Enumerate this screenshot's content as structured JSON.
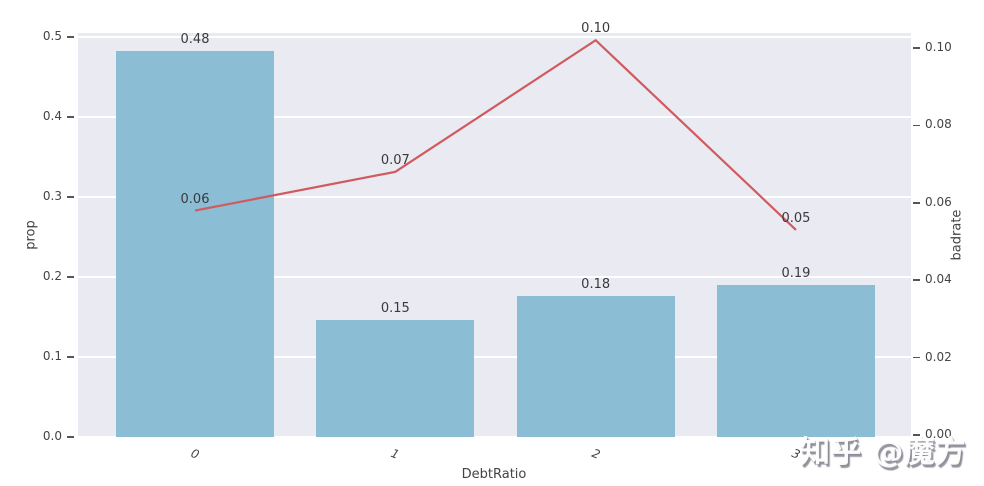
{
  "watermark": {
    "text": "知乎 @魔方"
  },
  "chart_data": {
    "type": "bar",
    "subtype": "bar+line dual-axis combo",
    "title": "",
    "xlabel": "DebtRatio",
    "categories": [
      "0",
      "1",
      "2",
      "3"
    ],
    "left_axis": {
      "label": "prop",
      "ticks": [
        "0.0",
        "0.1",
        "0.2",
        "0.3",
        "0.4",
        "0.5"
      ],
      "range": [
        0.0,
        0.505
      ],
      "grid": true
    },
    "right_axis": {
      "label": "badrate",
      "ticks": [
        "0.00",
        "0.02",
        "0.04",
        "0.06",
        "0.08",
        "0.10"
      ],
      "range": [
        0.0,
        0.104
      ],
      "grid": false
    },
    "series": [
      {
        "name": "prop",
        "type": "bar",
        "axis": "left",
        "color": "#8bbdd4",
        "values": [
          0.483,
          0.146,
          0.176,
          0.19
        ],
        "labels": [
          "0.48",
          "0.15",
          "0.18",
          "0.19"
        ]
      },
      {
        "name": "badrate",
        "type": "line",
        "axis": "right",
        "color": "#d05a5e",
        "values": [
          0.058,
          0.068,
          0.102,
          0.053
        ],
        "labels": [
          "0.06",
          "0.07",
          "0.10",
          "0.05"
        ]
      }
    ],
    "plot_background": "#eaeaf2",
    "grid_color": "#ffffff",
    "legend": "none"
  }
}
